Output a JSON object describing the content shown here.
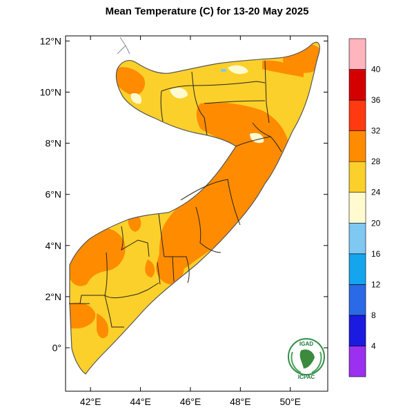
{
  "title": "Mean Temperature (C) for 13-20 May 2025",
  "map": {
    "lon_range": [
      41,
      51.5
    ],
    "lat_range": [
      -1.7,
      12.2
    ],
    "lat_ticks": [
      {
        "value": 12,
        "label": "12°N"
      },
      {
        "value": 10,
        "label": "10°N"
      },
      {
        "value": 8,
        "label": "8°N"
      },
      {
        "value": 6,
        "label": "6°N"
      },
      {
        "value": 4,
        "label": "4°N"
      },
      {
        "value": 2,
        "label": "2°N"
      },
      {
        "value": 0,
        "label": "0°"
      }
    ],
    "lon_ticks": [
      {
        "value": 42,
        "label": "42°E"
      },
      {
        "value": 44,
        "label": "44°E"
      },
      {
        "value": 46,
        "label": "46°E"
      },
      {
        "value": 48,
        "label": "48°E"
      },
      {
        "value": 50,
        "label": "50°E"
      }
    ]
  },
  "colorbar": {
    "labels": [
      "4",
      "8",
      "12",
      "16",
      "20",
      "24",
      "28",
      "32",
      "36",
      "40"
    ],
    "colors": [
      "#9b30f0",
      "#1a1ae0",
      "#2a6ae6",
      "#15a4ee",
      "#7ec8f2",
      "#fffad0",
      "#fcd02a",
      "#ff8c00",
      "#ff3a10",
      "#d40000",
      "#ffb4be"
    ]
  },
  "logo": {
    "top_text": "IGAD",
    "bottom_text": "ICPAC"
  }
}
